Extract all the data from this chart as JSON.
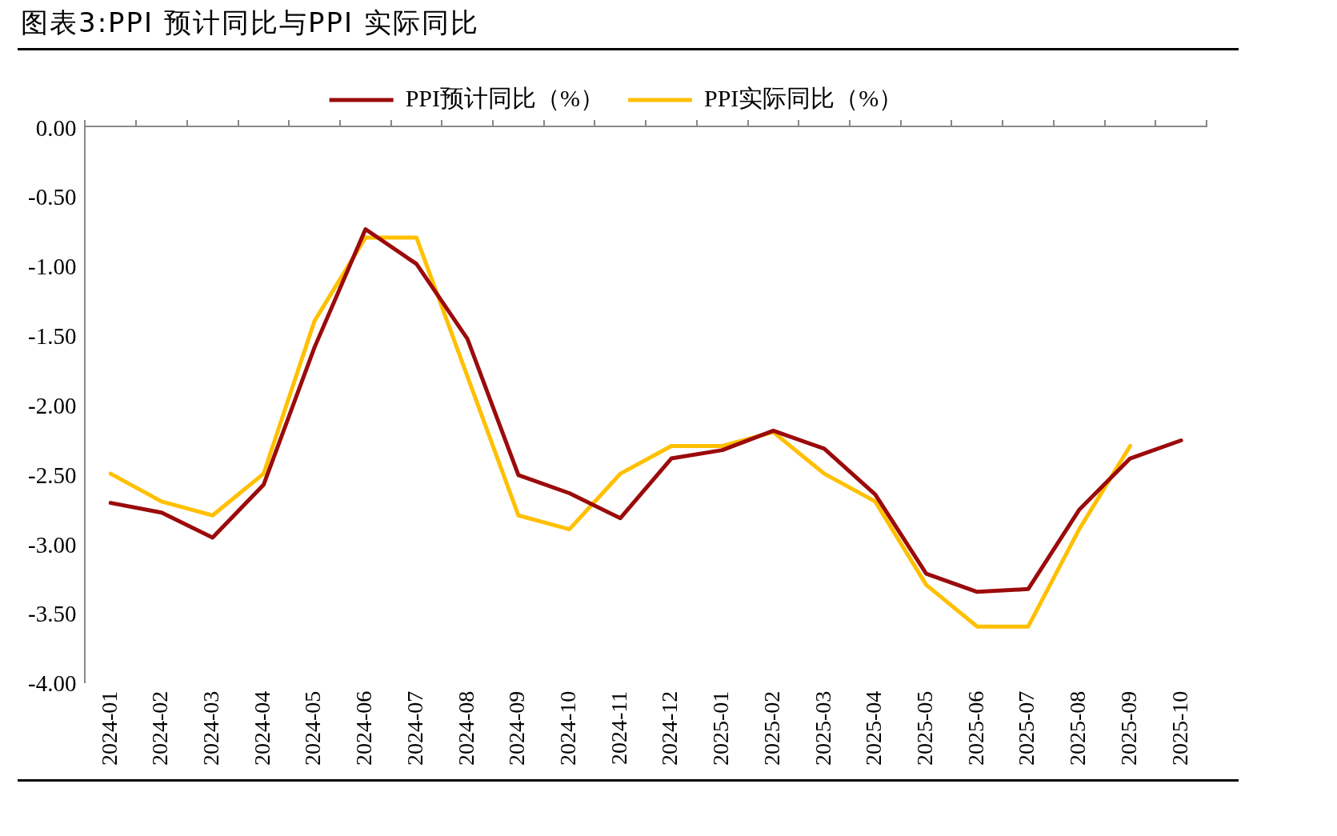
{
  "chart_data": {
    "type": "line",
    "title": "图表3:PPI 预计同比与PPI 实际同比",
    "categories": [
      "2024-01",
      "2024-02",
      "2024-03",
      "2024-04",
      "2024-05",
      "2024-06",
      "2024-07",
      "2024-08",
      "2024-09",
      "2024-10",
      "2024-11",
      "2024-12",
      "2025-01",
      "2025-02",
      "2025-03",
      "2025-04",
      "2025-05",
      "2025-06",
      "2025-07",
      "2025-08",
      "2025-09",
      "2025-10"
    ],
    "series": [
      {
        "name": "PPI预计同比（%）",
        "color": "#9b0b0b",
        "values": [
          -2.71,
          -2.78,
          -2.96,
          -2.58,
          -1.59,
          -0.74,
          -0.99,
          -1.53,
          -2.51,
          -2.64,
          -2.82,
          -2.39,
          -2.33,
          -2.19,
          -2.32,
          -2.65,
          -3.22,
          -3.35,
          -3.33,
          -2.76,
          -2.39,
          -2.26
        ]
      },
      {
        "name": "PPI实际同比（%）",
        "color": "#ffc000",
        "values": [
          -2.5,
          -2.7,
          -2.8,
          -2.5,
          -1.4,
          -0.8,
          -0.8,
          -1.8,
          -2.8,
          -2.9,
          -2.5,
          -2.3,
          -2.3,
          -2.2,
          -2.5,
          -2.7,
          -3.3,
          -3.6,
          -3.6,
          -2.9,
          -2.3,
          null
        ]
      }
    ],
    "ylim": [
      -4,
      0
    ],
    "yticks": [
      {
        "value": 0,
        "label": "0.00"
      },
      {
        "value": -0.5,
        "label": "-0.50"
      },
      {
        "value": -1,
        "label": "-1.00"
      },
      {
        "value": -1.5,
        "label": "-1.50"
      },
      {
        "value": -2,
        "label": "-2.00"
      },
      {
        "value": -2.5,
        "label": "-2.50"
      },
      {
        "value": -3,
        "label": "-3.00"
      },
      {
        "value": -3.5,
        "label": "-3.50"
      },
      {
        "value": -4,
        "label": "-4.00"
      }
    ],
    "grid": false,
    "legend": "top",
    "marker": "none",
    "line_style": "solid"
  }
}
